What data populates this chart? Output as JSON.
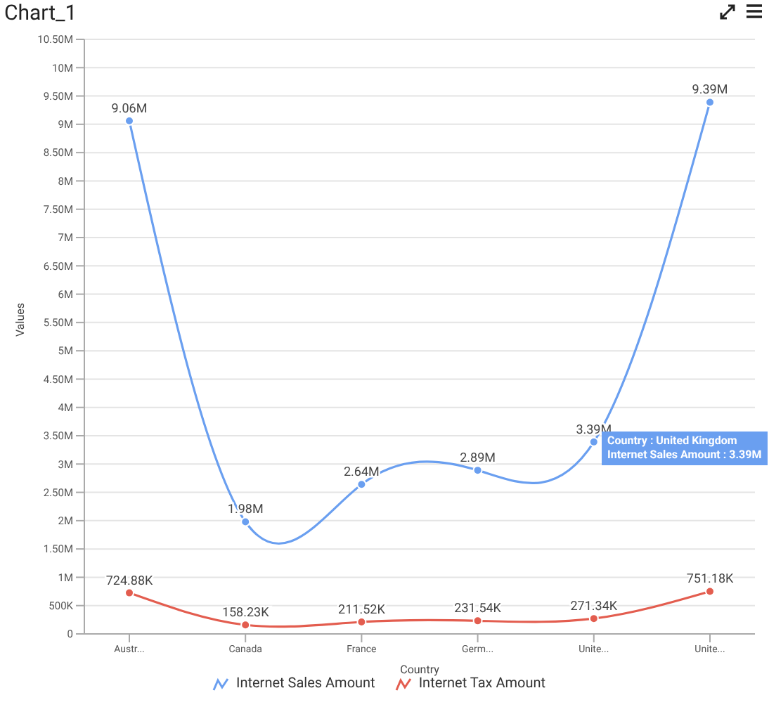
{
  "chart_data": {
    "type": "line",
    "title": "Chart_1",
    "xlabel": "Country",
    "ylabel": "Values",
    "categories": [
      "Austr...",
      "Canada",
      "France",
      "Germ...",
      "Unite...",
      "Unite..."
    ],
    "series": [
      {
        "name": "Internet Sales Amount",
        "color": "#6a9ff0",
        "values": [
          9060000,
          1980000,
          2640000,
          2890000,
          3390000,
          9390000
        ],
        "value_labels": [
          "9.06M",
          "1.98M",
          "2.64M",
          "2.89M",
          "3.39M",
          "9.39M"
        ]
      },
      {
        "name": "Internet Tax Amount",
        "color": "#e35d4f",
        "values": [
          724880,
          158230,
          211520,
          231540,
          271340,
          751180
        ],
        "value_labels": [
          "724.88K",
          "158.23K",
          "211.52K",
          "231.54K",
          "271.34K",
          "751.18K"
        ]
      }
    ],
    "ylim": [
      0,
      10500000
    ],
    "yticks": [
      0,
      {
        "value": 500000,
        "label": "500K"
      },
      {
        "value": 1000000,
        "label": "1M"
      },
      {
        "value": 1500000,
        "label": "1.50M"
      },
      {
        "value": 2000000,
        "label": "2M"
      },
      {
        "value": 2500000,
        "label": "2.50M"
      },
      {
        "value": 3000000,
        "label": "3M"
      },
      {
        "value": 3500000,
        "label": "3.50M"
      },
      {
        "value": 4000000,
        "label": "4M"
      },
      {
        "value": 4500000,
        "label": "4.50M"
      },
      {
        "value": 5000000,
        "label": "5M"
      },
      {
        "value": 5500000,
        "label": "5.50M"
      },
      {
        "value": 6000000,
        "label": "6M"
      },
      {
        "value": 6500000,
        "label": "6.50M"
      },
      {
        "value": 7000000,
        "label": "7M"
      },
      {
        "value": 7500000,
        "label": "7.50M"
      },
      {
        "value": 8000000,
        "label": "8M"
      },
      {
        "value": 8500000,
        "label": "8.50M"
      },
      {
        "value": 9000000,
        "label": "9M"
      },
      {
        "value": 9500000,
        "label": "9.50M"
      },
      {
        "value": 10000000,
        "label": "10M"
      },
      {
        "value": 10500000,
        "label": "10.50M"
      }
    ],
    "grid": "y",
    "legend": "bottom",
    "marker": "circle",
    "line_style": "solid",
    "annotations": [
      "Country : United Kingdom",
      "Internet Sales Amount : 3.39M"
    ]
  }
}
